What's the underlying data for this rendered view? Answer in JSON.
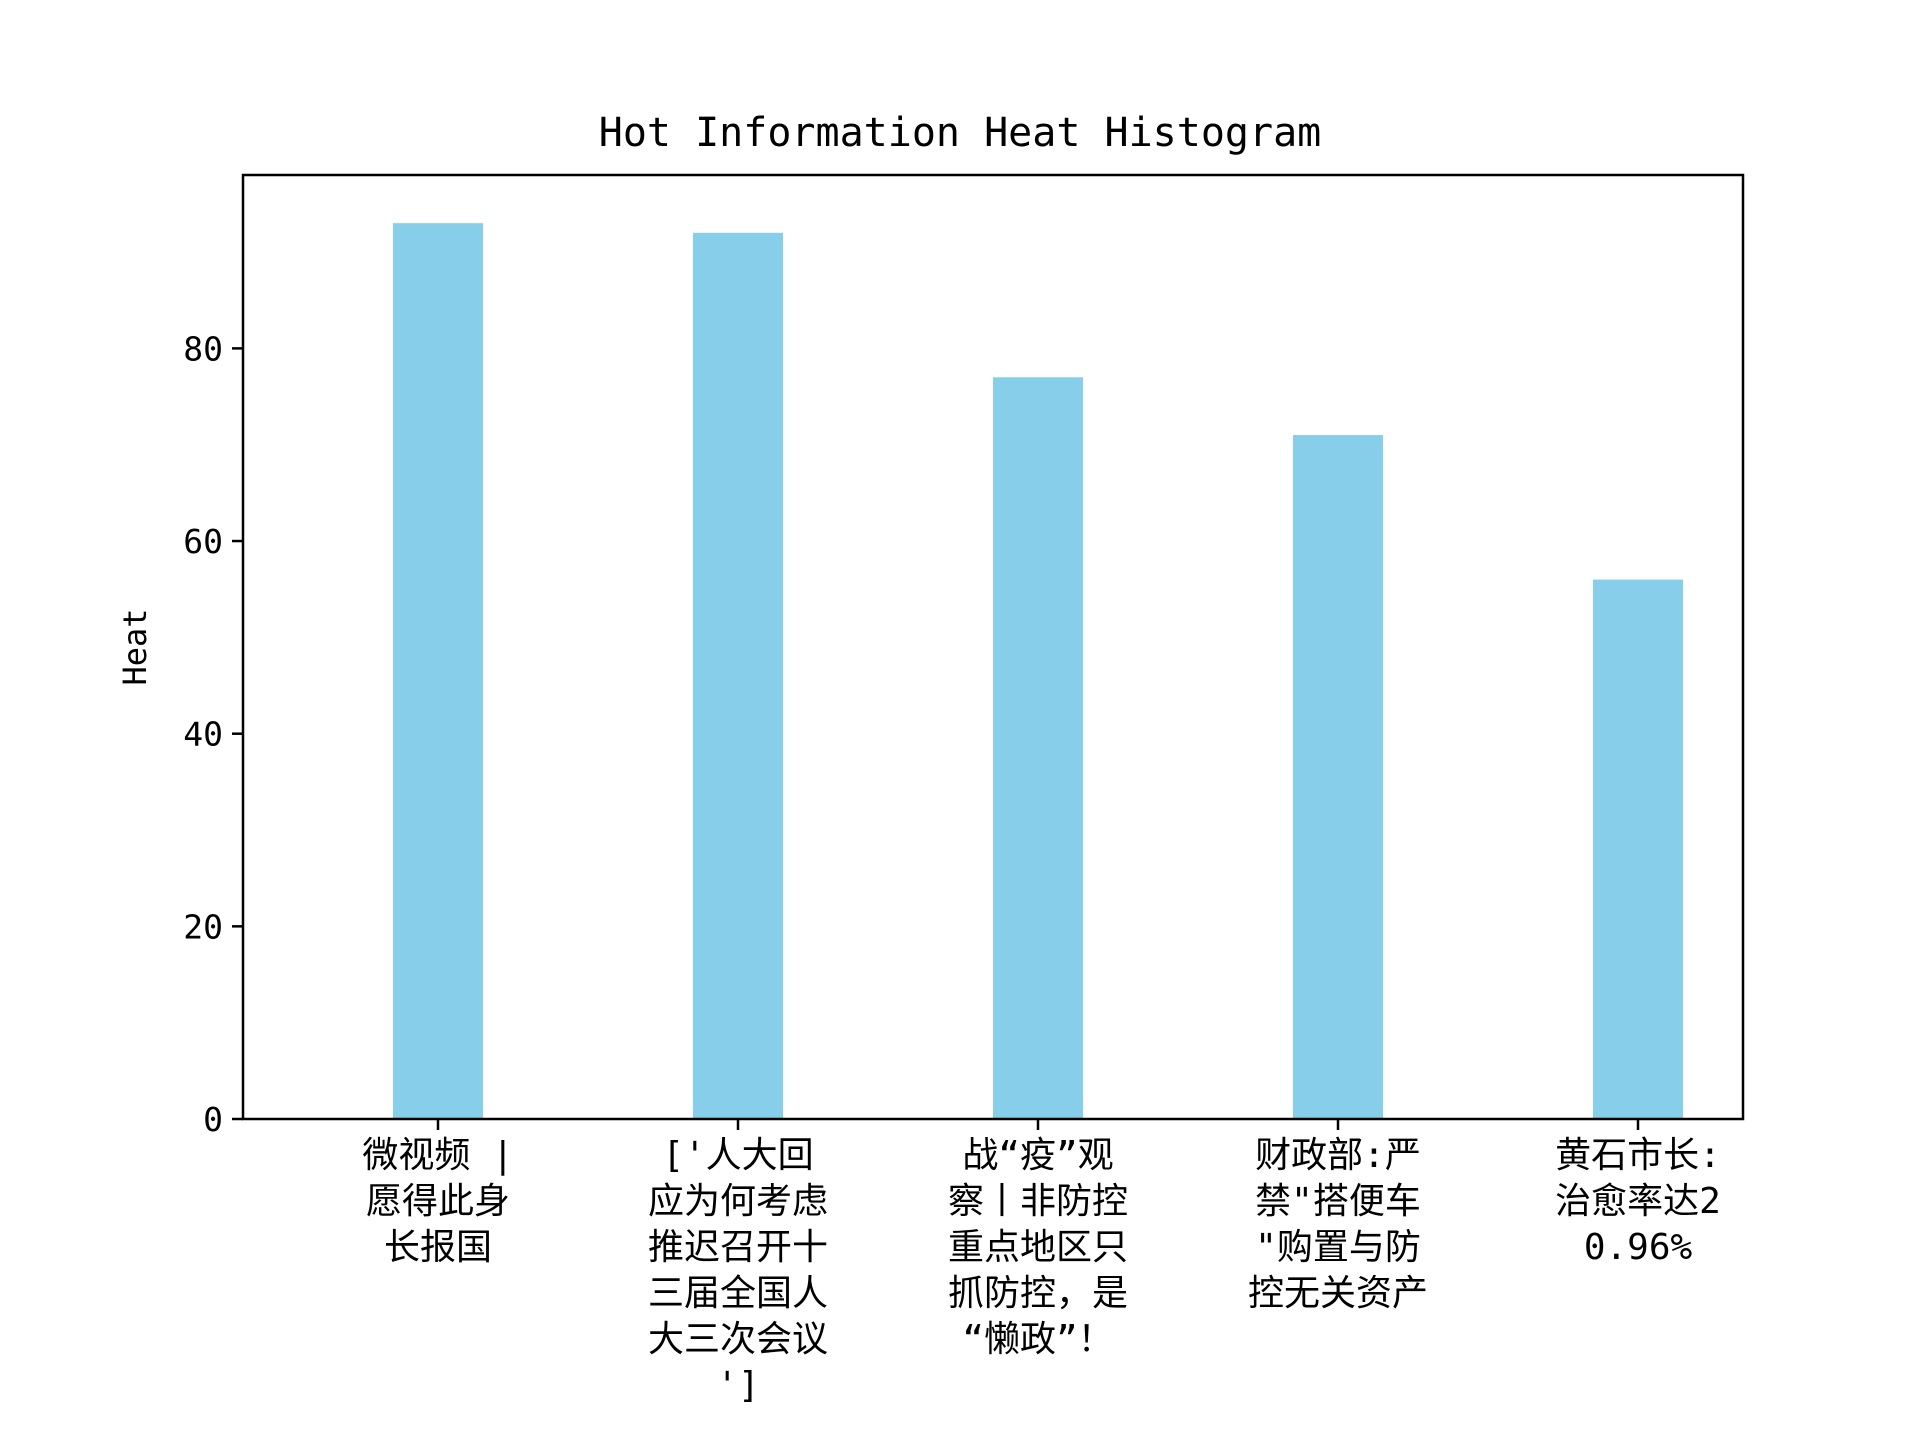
{
  "chart_data": {
    "type": "bar",
    "title": "Hot Information Heat Histogram",
    "xlabel": "",
    "ylabel": "Heat",
    "ylim": [
      0,
      98
    ],
    "yticks": [
      0,
      20,
      40,
      60,
      80
    ],
    "grid": false,
    "bar_color": "#87CEEB",
    "categories": [
      [
        "微视频 |",
        "愿得此身",
        "长报国"
      ],
      [
        "['人大回",
        "应为何考虑",
        "推迟召开十",
        "三届全国人",
        "大三次会议",
        "']"
      ],
      [
        "战“疫”观",
        "察丨非防控",
        "重点地区只",
        "抓防控，是",
        "“懒政”！"
      ],
      [
        "财政部:严",
        "禁\"搭便车",
        "\"购置与防",
        "控无关资产"
      ],
      [
        "黄石市长:",
        "治愈率达2",
        "0.96%"
      ]
    ],
    "values": [
      93,
      92,
      77,
      71,
      56
    ]
  }
}
